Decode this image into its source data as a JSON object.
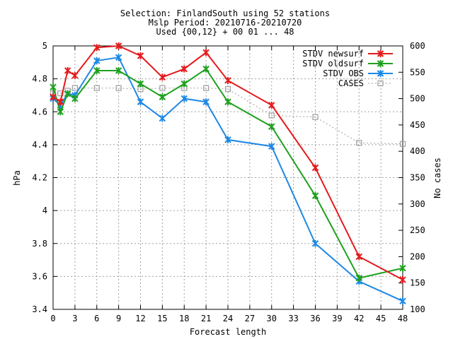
{
  "chart_data": {
    "type": "line",
    "title_lines": [
      "Selection: FinlandSouth using    52 stations",
      "Mslp   Period: 20210716-20210720",
      "Used {00,12} + 00 01 ... 48"
    ],
    "xlabel": "Forecast length",
    "ylabel": "hPa",
    "y2label": "No cases",
    "xlim": [
      0,
      48
    ],
    "ylim": [
      3.4,
      5.0
    ],
    "y2lim": [
      100,
      600
    ],
    "x_ticks": [
      0,
      3,
      6,
      9,
      12,
      15,
      18,
      21,
      24,
      27,
      30,
      33,
      36,
      39,
      42,
      45,
      48
    ],
    "y_ticks": [
      "3.4",
      "3.6",
      "3.8",
      "4",
      "4.2",
      "4.4",
      "4.6",
      "4.8",
      "5"
    ],
    "y2_ticks": [
      100,
      150,
      200,
      250,
      300,
      350,
      400,
      450,
      500,
      550,
      600
    ],
    "grid": true,
    "legend_position": "top-right",
    "x": [
      0,
      1,
      2,
      3,
      6,
      9,
      12,
      15,
      18,
      21,
      24,
      30,
      36,
      42,
      48
    ],
    "series": [
      {
        "name": "STDV newsurf",
        "axis": "left",
        "color": "#e41a1c",
        "marker": "x",
        "values": [
          4.69,
          4.66,
          4.85,
          4.82,
          4.99,
          5.0,
          4.94,
          4.81,
          4.86,
          4.96,
          4.79,
          4.64,
          4.26,
          3.72,
          3.58
        ]
      },
      {
        "name": "STDV oldsurf",
        "axis": "left",
        "color": "#1ea01e",
        "marker": "x",
        "values": [
          4.75,
          4.6,
          4.71,
          4.68,
          4.85,
          4.85,
          4.77,
          4.69,
          4.77,
          4.86,
          4.66,
          4.51,
          4.09,
          3.59,
          3.65
        ]
      },
      {
        "name": "STDV OBS",
        "axis": "left",
        "color": "#1e88e5",
        "marker": "x",
        "values": [
          4.68,
          4.64,
          4.71,
          4.7,
          4.91,
          4.93,
          4.66,
          4.56,
          4.68,
          4.66,
          4.43,
          4.39,
          3.8,
          3.57,
          3.45
        ]
      },
      {
        "name": "CASES",
        "axis": "right",
        "color": "#a0a0a0",
        "marker": "square",
        "dashed": true,
        "values": [
          510,
          510,
          515,
          520,
          520,
          520,
          518,
          520,
          520,
          520,
          518,
          468,
          465,
          416,
          414
        ]
      }
    ]
  }
}
